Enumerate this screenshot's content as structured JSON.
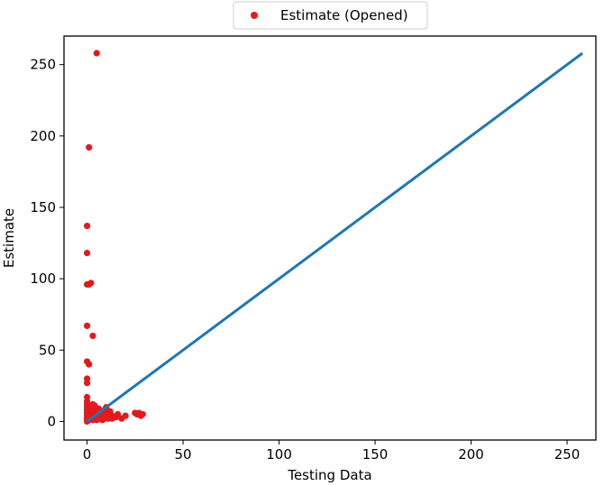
{
  "chart_data": {
    "type": "scatter",
    "title": "",
    "xlabel": "Testing Data",
    "ylabel": "Estimate",
    "xlim": [
      -12,
      265
    ],
    "ylim": [
      -13,
      270
    ],
    "xticks": [
      0,
      50,
      100,
      150,
      200,
      250
    ],
    "yticks": [
      0,
      50,
      100,
      150,
      200,
      250
    ],
    "grid": false,
    "legend": {
      "placement": "top-center-outside",
      "entries": [
        "Estimate (Opened)"
      ]
    },
    "series": [
      {
        "name": "Estimate (Opened)",
        "type": "scatter",
        "color": "#e31a1c",
        "points": [
          [
            5,
            258
          ],
          [
            1,
            192
          ],
          [
            0,
            137
          ],
          [
            0,
            118
          ],
          [
            0,
            96
          ],
          [
            1,
            96
          ],
          [
            2,
            97
          ],
          [
            0,
            67
          ],
          [
            3,
            60
          ],
          [
            0,
            42
          ],
          [
            1,
            40
          ],
          [
            0,
            30
          ],
          [
            0,
            27
          ],
          [
            0,
            17
          ],
          [
            0,
            14
          ],
          [
            0,
            12
          ],
          [
            0,
            10
          ],
          [
            0,
            8
          ],
          [
            0,
            6
          ],
          [
            0,
            4
          ],
          [
            0,
            2
          ],
          [
            0,
            0
          ],
          [
            1,
            1
          ],
          [
            1,
            3
          ],
          [
            1,
            5
          ],
          [
            1,
            7
          ],
          [
            1,
            9
          ],
          [
            2,
            2
          ],
          [
            2,
            4
          ],
          [
            2,
            6
          ],
          [
            2,
            8
          ],
          [
            2,
            11
          ],
          [
            3,
            1
          ],
          [
            3,
            3
          ],
          [
            3,
            5
          ],
          [
            3,
            7
          ],
          [
            3,
            10
          ],
          [
            4,
            2
          ],
          [
            4,
            4
          ],
          [
            4,
            6
          ],
          [
            4,
            9
          ],
          [
            5,
            1
          ],
          [
            5,
            3
          ],
          [
            5,
            5
          ],
          [
            5,
            8
          ],
          [
            6,
            2
          ],
          [
            6,
            4
          ],
          [
            6,
            6
          ],
          [
            6,
            9
          ],
          [
            7,
            3
          ],
          [
            7,
            5
          ],
          [
            7,
            7
          ],
          [
            8,
            1
          ],
          [
            8,
            4
          ],
          [
            8,
            6
          ],
          [
            9,
            2
          ],
          [
            9,
            5
          ],
          [
            9,
            8
          ],
          [
            10,
            3
          ],
          [
            10,
            6
          ],
          [
            10,
            10
          ],
          [
            11,
            2
          ],
          [
            11,
            5
          ],
          [
            12,
            3
          ],
          [
            12,
            7
          ],
          [
            13,
            4
          ],
          [
            13,
            2
          ],
          [
            15,
            3
          ],
          [
            16,
            5
          ],
          [
            18,
            2
          ],
          [
            20,
            4
          ],
          [
            25,
            6
          ],
          [
            26,
            5
          ],
          [
            27,
            6
          ],
          [
            28,
            4
          ],
          [
            29,
            5
          ],
          [
            3,
            12
          ],
          [
            4,
            11
          ]
        ]
      },
      {
        "name": "",
        "type": "line",
        "color": "#1f77b4",
        "points": [
          [
            0,
            0
          ],
          [
            258,
            258
          ]
        ]
      }
    ]
  }
}
